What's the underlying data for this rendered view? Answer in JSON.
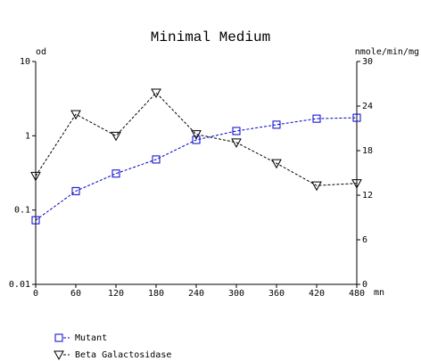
{
  "chart_data": {
    "type": "line",
    "title": "Minimal Medium",
    "x": [
      0,
      60,
      120,
      180,
      240,
      300,
      360,
      420,
      480
    ],
    "xlim": [
      0,
      480
    ],
    "xticks": [
      0,
      60,
      120,
      180,
      240,
      300,
      360,
      420,
      480
    ],
    "xlabel": "mn",
    "ylabel": "od",
    "ylim": [
      0.01,
      10
    ],
    "yticks": [
      0.01,
      0.1,
      1,
      10
    ],
    "yscale": "log",
    "y2label": "nmole/min/mg",
    "y2lim": [
      0,
      30
    ],
    "y2ticks": [
      0,
      6,
      12,
      18,
      24,
      30
    ],
    "series": [
      {
        "name": "Mutant",
        "color": "#0000cc",
        "marker": "square",
        "values": [
          0.073,
          0.18,
          0.31,
          0.48,
          0.88,
          1.16,
          1.41,
          1.7,
          1.75
        ]
      },
      {
        "name": "Beta Galactosidase",
        "color": "#000000",
        "marker": "triangle-down",
        "axis": "y2",
        "values": [
          14.6,
          22.9,
          20.0,
          25.8,
          20.2,
          19.1,
          16.3,
          13.3,
          13.6
        ]
      }
    ]
  }
}
